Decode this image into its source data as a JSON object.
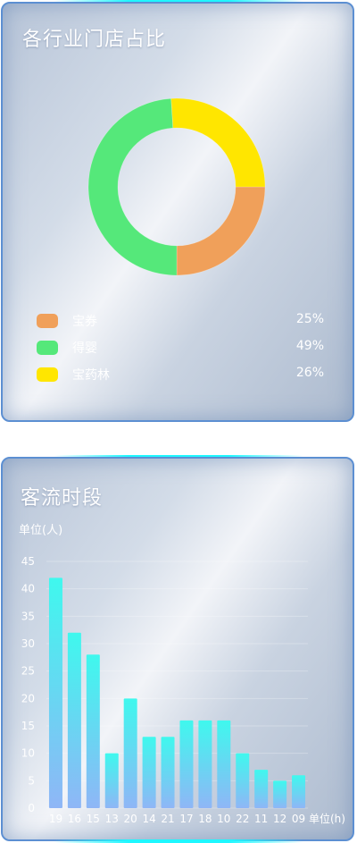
{
  "industry_panel": {
    "title": "各行业门店占比",
    "chart_data": {
      "type": "pie",
      "donut": true,
      "title": "各行业门店占比",
      "legend_placement": "bottom",
      "slices": [
        {
          "name": "宝券",
          "value": 25,
          "label": "25%",
          "color": "#f0a05a"
        },
        {
          "name": "得婴",
          "value": 49,
          "label": "49%",
          "color": "#55e87a"
        },
        {
          "name": "宝药林",
          "value": 26,
          "label": "26%",
          "color": "#ffe600"
        }
      ]
    }
  },
  "traffic_panel": {
    "title": "客流时段",
    "chart_data": {
      "type": "bar",
      "title": "客流时段",
      "ylabel": "单位(人)",
      "xlabel": "单位(h)",
      "ylim": [
        0,
        45
      ],
      "yticks": [
        "0",
        "5",
        "10",
        "15",
        "20",
        "25",
        "30",
        "35",
        "40",
        "45"
      ],
      "categories": [
        "19",
        "16",
        "15",
        "13",
        "20",
        "14",
        "21",
        "17",
        "18",
        "10",
        "22",
        "11",
        "12",
        "09"
      ],
      "values": [
        42,
        32,
        28,
        10,
        20,
        13,
        13,
        16,
        16,
        16,
        10,
        7,
        5,
        6
      ],
      "grid": true,
      "bar_color_top": "#3ff8ee",
      "bar_color_bottom": "#8fb6f6"
    }
  }
}
